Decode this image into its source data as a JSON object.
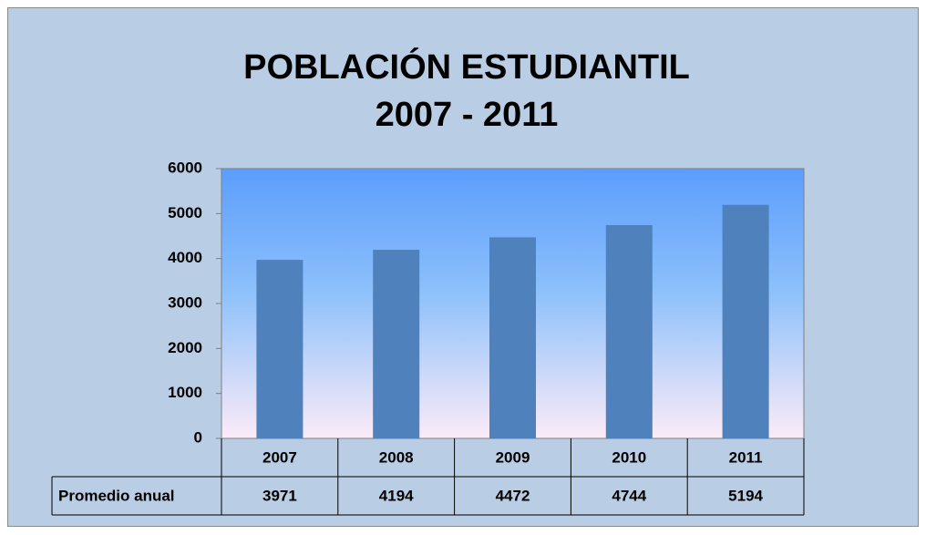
{
  "chart_data": {
    "type": "bar",
    "title": "POBLACIÓN ESTUDIANTIL",
    "subtitle": "2007 - 2011",
    "categories": [
      "2007",
      "2008",
      "2009",
      "2010",
      "2011"
    ],
    "series": [
      {
        "name": "Promedio anual",
        "color": "#4f81bd",
        "values": [
          3971,
          4194,
          4472,
          4744,
          5194
        ]
      }
    ],
    "ylim": [
      0,
      6000
    ],
    "yticks": [
      0,
      1000,
      2000,
      3000,
      4000,
      5000,
      6000
    ],
    "grid": false
  }
}
